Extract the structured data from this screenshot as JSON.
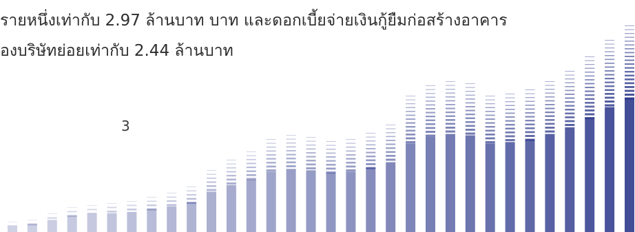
{
  "document": {
    "lines": [
      "รายหนึ่งเท่ากับ 2.97 ล้านบาท บาท และดอกเบี้ยจ่ายเงินกู้ยืมก่อสร้างอาคาร",
      "องบริษัทย่อยเท่ากับ 2.44 ล้านบาท"
    ],
    "page_number": "3"
  },
  "decoration": {
    "name": "letterhead-bar-pattern",
    "color": "#2e3a8c",
    "bar_levels": [
      0.05,
      0.06,
      0.09,
      0.12,
      0.13,
      0.14,
      0.15,
      0.17,
      0.19,
      0.22,
      0.3,
      0.35,
      0.39,
      0.45,
      0.47,
      0.46,
      0.44,
      0.45,
      0.48,
      0.52,
      0.66,
      0.71,
      0.73,
      0.72,
      0.66,
      0.67,
      0.69,
      0.73,
      0.78,
      0.85,
      0.93,
      1.0
    ]
  }
}
